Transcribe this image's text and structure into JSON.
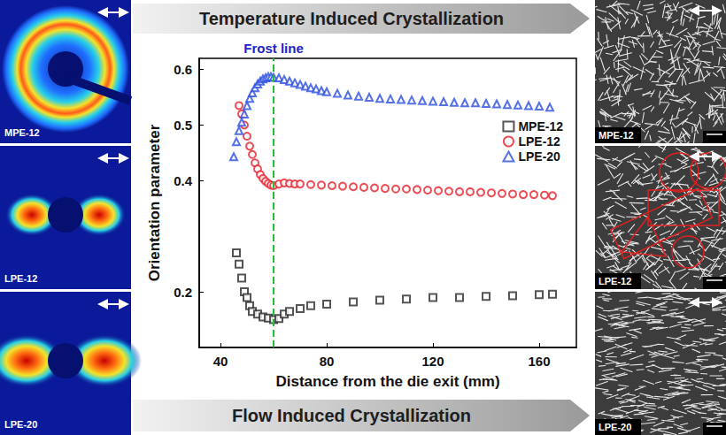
{
  "chart_data": {
    "type": "scatter",
    "xlabel": "Distance from the die exit (mm)",
    "ylabel": "Orientation parameter",
    "xlim": [
      32,
      174
    ],
    "xticks": [
      40,
      80,
      120,
      160
    ],
    "ylim": [
      0.1,
      0.62
    ],
    "yticks": [
      0.2,
      0.4,
      0.5,
      0.6
    ],
    "grid": false,
    "legend": "right",
    "frost_line": {
      "x": 60,
      "label": "Frost line",
      "color": "#22c03a"
    },
    "series": [
      {
        "name": "MPE-12",
        "color": "#2b2b2b",
        "marker": "square",
        "x": [
          46,
          47,
          48,
          49,
          50,
          51,
          52,
          54,
          56,
          58,
          60,
          62,
          64,
          66,
          70,
          74,
          80,
          90,
          100,
          110,
          120,
          130,
          140,
          150,
          160,
          165
        ],
        "values": [
          0.27,
          0.25,
          0.225,
          0.2,
          0.19,
          0.175,
          0.165,
          0.16,
          0.155,
          0.153,
          0.15,
          0.152,
          0.16,
          0.165,
          0.17,
          0.175,
          0.178,
          0.182,
          0.185,
          0.187,
          0.19,
          0.19,
          0.192,
          0.193,
          0.195,
          0.196
        ]
      },
      {
        "name": "LPE-12",
        "color": "#e8212a",
        "marker": "circle",
        "x": [
          47,
          48,
          49,
          50,
          51,
          52,
          53,
          54,
          55,
          56,
          57,
          58,
          59,
          60,
          62,
          64,
          66,
          68,
          70,
          74,
          78,
          82,
          86,
          90,
          94,
          98,
          102,
          106,
          110,
          114,
          118,
          122,
          126,
          130,
          134,
          138,
          142,
          146,
          150,
          154,
          158,
          162,
          165
        ],
        "values": [
          0.535,
          0.52,
          0.5,
          0.48,
          0.462,
          0.447,
          0.432,
          0.421,
          0.411,
          0.404,
          0.399,
          0.395,
          0.392,
          0.391,
          0.394,
          0.396,
          0.395,
          0.394,
          0.394,
          0.393,
          0.392,
          0.391,
          0.39,
          0.389,
          0.388,
          0.387,
          0.386,
          0.385,
          0.385,
          0.384,
          0.383,
          0.382,
          0.381,
          0.38,
          0.38,
          0.379,
          0.378,
          0.377,
          0.376,
          0.375,
          0.375,
          0.374,
          0.373
        ]
      },
      {
        "name": "LPE-20",
        "color": "#2a4ee0",
        "marker": "triangle",
        "x": [
          45,
          46,
          47,
          48,
          49,
          50,
          51,
          52,
          53,
          54,
          55,
          56,
          57,
          58,
          59,
          60,
          62,
          64,
          66,
          68,
          70,
          72,
          74,
          76,
          78,
          80,
          84,
          88,
          92,
          96,
          100,
          104,
          108,
          112,
          116,
          120,
          124,
          128,
          132,
          136,
          140,
          144,
          148,
          152,
          156,
          160,
          164
        ],
        "values": [
          0.443,
          0.47,
          0.49,
          0.505,
          0.52,
          0.535,
          0.548,
          0.558,
          0.567,
          0.574,
          0.579,
          0.583,
          0.585,
          0.587,
          0.587,
          0.586,
          0.585,
          0.582,
          0.579,
          0.576,
          0.573,
          0.57,
          0.567,
          0.565,
          0.562,
          0.56,
          0.557,
          0.554,
          0.552,
          0.55,
          0.548,
          0.547,
          0.546,
          0.545,
          0.544,
          0.543,
          0.542,
          0.541,
          0.54,
          0.54,
          0.539,
          0.538,
          0.537,
          0.536,
          0.535,
          0.534,
          0.532
        ]
      }
    ]
  },
  "figure": {
    "top_banner": "Temperature Induced Crystallization",
    "bottom_banner": "Flow Induced Crystallization",
    "waxs_panels": [
      "MPE-12",
      "LPE-12",
      "LPE-20"
    ],
    "sem_panels": [
      "MPE-12",
      "LPE-12",
      "LPE-20"
    ]
  }
}
